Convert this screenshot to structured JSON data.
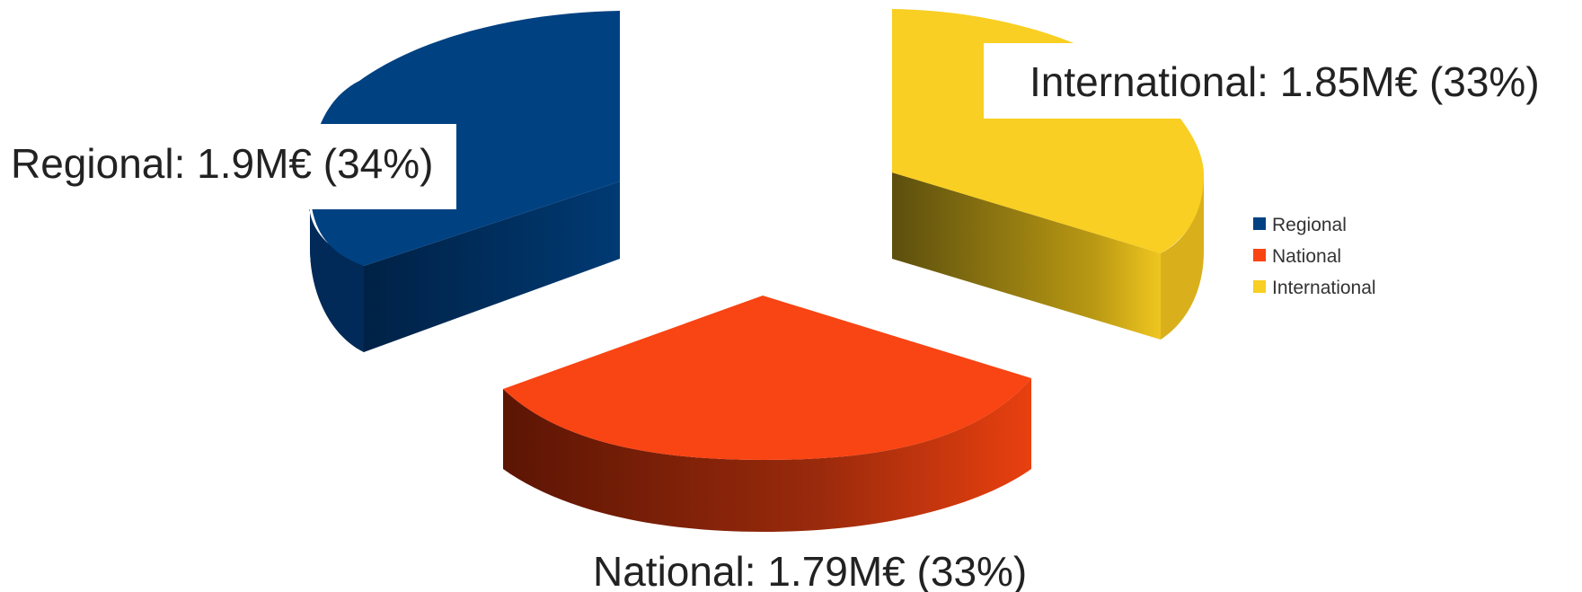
{
  "chart_data": {
    "type": "pie",
    "style": "3d-exploded",
    "title": "",
    "legend_position": "right",
    "slices": [
      {
        "name": "Regional",
        "value": 1.9,
        "percent": 34,
        "color": "#004182",
        "label": "Regional: 1.9M€ (34%)"
      },
      {
        "name": "National",
        "value": 1.79,
        "percent": 33,
        "color": "#f94413",
        "label": "National: 1.79M€ (33%)"
      },
      {
        "name": "International",
        "value": 1.85,
        "percent": 33,
        "color": "#f8cf22",
        "label": "International: 1.85M€ (33%)"
      }
    ],
    "legend": [
      "Regional",
      "National",
      "International"
    ]
  }
}
